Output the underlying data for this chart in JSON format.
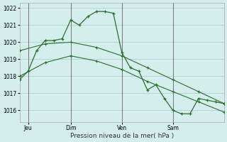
{
  "title": "",
  "xlabel": "Pression niveau de la mer( hPa )",
  "ylabel": "",
  "background_color": "#d4eeee",
  "grid_color": "#aacccc",
  "line_color": "#2d6e2d",
  "ylim": [
    1015.3,
    1022.3
  ],
  "yticks": [
    1016,
    1017,
    1018,
    1019,
    1020,
    1021,
    1022
  ],
  "xlim": [
    0,
    96
  ],
  "xtick_positions": [
    4,
    24,
    48,
    72
  ],
  "day_labels": [
    "Jeu",
    "Dim",
    "Ven",
    "Sam"
  ],
  "vline_positions": [
    4,
    24,
    48,
    72
  ],
  "line1_x": [
    0,
    4,
    8,
    12,
    16,
    20,
    24,
    28,
    32,
    36,
    40,
    44,
    48,
    52,
    56,
    60,
    64,
    68,
    72,
    76,
    80,
    84,
    88,
    92,
    96
  ],
  "line1_y": [
    1017.8,
    1018.3,
    1019.5,
    1020.1,
    1020.1,
    1020.2,
    1021.3,
    1021.0,
    1021.5,
    1021.8,
    1021.8,
    1021.7,
    1019.4,
    1018.5,
    1018.3,
    1017.2,
    1017.5,
    1016.7,
    1016.0,
    1015.8,
    1015.8,
    1016.7,
    1016.6,
    1016.5,
    1016.4
  ],
  "line2_x": [
    0,
    12,
    24,
    36,
    48,
    60,
    72,
    84,
    96
  ],
  "line2_y": [
    1019.5,
    1019.9,
    1020.0,
    1019.7,
    1019.2,
    1018.5,
    1017.8,
    1017.1,
    1016.4
  ],
  "line3_x": [
    0,
    12,
    24,
    36,
    48,
    60,
    72,
    84,
    96
  ],
  "line3_y": [
    1018.0,
    1018.8,
    1019.2,
    1018.9,
    1018.4,
    1017.7,
    1017.1,
    1016.5,
    1015.9
  ]
}
